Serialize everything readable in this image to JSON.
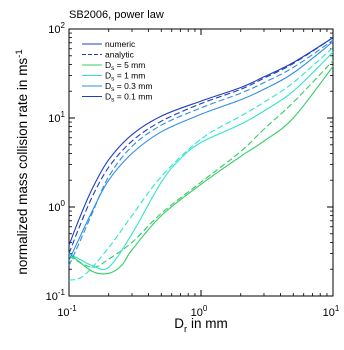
{
  "chart_data": {
    "type": "line",
    "title": "SB2006, power law",
    "xlabel": {
      "main": "D",
      "sub": "r",
      "rest": " in mm"
    },
    "ylabel": {
      "main": "normalized mass collision rate in ms",
      "sup": "-1"
    },
    "xscale": "log",
    "yscale": "log",
    "xlim": [
      0.1,
      10
    ],
    "ylim": [
      0.1,
      100
    ],
    "x_ticks": [
      {
        "base": "10",
        "exp": "-1",
        "value": 0.1
      },
      {
        "base": "10",
        "exp": "0",
        "value": 1
      },
      {
        "base": "10",
        "exp": "1",
        "value": 10
      }
    ],
    "y_ticks": [
      {
        "base": "10",
        "exp": "-1",
        "value": 0.1
      },
      {
        "base": "10",
        "exp": "0",
        "value": 1
      },
      {
        "base": "10",
        "exp": "1",
        "value": 10
      },
      {
        "base": "10",
        "exp": "2",
        "value": 100
      }
    ],
    "legend_position": "top-left",
    "legend": [
      {
        "label": "numeric",
        "sub": "",
        "rest": "",
        "color": "#1f3fbf",
        "dash": false
      },
      {
        "label": "analytic",
        "sub": "",
        "rest": "",
        "color": "#1f3fbf",
        "dash": true
      },
      {
        "label": "D",
        "sub": "s",
        "rest": " = 5 mm",
        "color": "#33cc66",
        "dash": false
      },
      {
        "label": "D",
        "sub": "s",
        "rest": " = 1 mm",
        "color": "#2ee6cc",
        "dash": false
      },
      {
        "label": "D",
        "sub": "s",
        "rest": " = 0.3 mm",
        "color": "#2e8fe6",
        "dash": false
      },
      {
        "label": "D",
        "sub": "s",
        "rest": " = 0.1 mm",
        "color": "#1f3fbf",
        "dash": false
      }
    ],
    "series": [
      {
        "name": "D_s = 5 mm, numeric",
        "color": "#33cc66",
        "dash": false,
        "x": [
          0.1,
          0.15,
          0.2,
          0.25,
          0.3,
          0.5,
          1,
          2,
          3,
          5,
          10
        ],
        "y": [
          0.3,
          0.19,
          0.18,
          0.22,
          0.33,
          0.8,
          1.8,
          3.7,
          5.5,
          10,
          38
        ]
      },
      {
        "name": "D_s = 5 mm, analytic",
        "color": "#33cc66",
        "dash": true,
        "x": [
          0.1,
          0.15,
          0.2,
          0.3,
          0.5,
          1,
          2,
          3,
          5,
          10
        ],
        "y": [
          0.28,
          0.21,
          0.26,
          0.4,
          0.85,
          1.9,
          4.2,
          7.5,
          15,
          44
        ]
      },
      {
        "name": "D_s = 1 mm, numeric",
        "color": "#2ee6cc",
        "dash": false,
        "x": [
          0.1,
          0.12,
          0.15,
          0.2,
          0.3,
          0.5,
          0.7,
          1,
          2,
          3,
          5,
          10
        ],
        "y": [
          0.3,
          0.26,
          0.22,
          0.21,
          0.5,
          1.9,
          3.5,
          5.3,
          8.5,
          12,
          20,
          55
        ]
      },
      {
        "name": "D_s = 1 mm, analytic",
        "color": "#2ee6cc",
        "dash": true,
        "x": [
          0.1,
          0.13,
          0.2,
          0.3,
          0.5,
          1,
          2,
          3,
          5,
          10
        ],
        "y": [
          0.15,
          0.17,
          0.35,
          0.8,
          2.2,
          5.8,
          10.5,
          15,
          25,
          62
        ]
      },
      {
        "name": "D_s = 0.3 mm, numeric",
        "color": "#2e8fe6",
        "dash": false,
        "x": [
          0.1,
          0.12,
          0.15,
          0.2,
          0.3,
          0.5,
          1,
          2,
          3,
          5,
          10
        ],
        "y": [
          0.25,
          0.45,
          0.9,
          2.0,
          4.0,
          7.0,
          11,
          16,
          21,
          32,
          72
        ]
      },
      {
        "name": "D_s = 0.3 mm, analytic",
        "color": "#2e8fe6",
        "dash": true,
        "x": [
          0.1,
          0.12,
          0.15,
          0.2,
          0.3,
          0.5,
          1,
          2,
          3,
          5,
          10
        ],
        "y": [
          0.22,
          0.4,
          0.85,
          2.2,
          4.8,
          8.3,
          13,
          19,
          25,
          37,
          75
        ]
      },
      {
        "name": "D_s = 0.1 mm, numeric",
        "color": "#1f3fbf",
        "dash": false,
        "x": [
          0.1,
          0.12,
          0.15,
          0.2,
          0.3,
          0.5,
          1,
          2,
          3,
          5,
          10
        ],
        "y": [
          0.37,
          0.75,
          1.6,
          3.4,
          6.5,
          10.5,
          15.5,
          22,
          29,
          42,
          80
        ]
      },
      {
        "name": "D_s = 0.1 mm, analytic",
        "color": "#1f3fbf",
        "dash": true,
        "x": [
          0.1,
          0.12,
          0.15,
          0.2,
          0.3,
          0.5,
          1,
          2,
          3,
          5,
          10
        ],
        "y": [
          0.3,
          0.6,
          1.3,
          2.8,
          5.5,
          9.2,
          14.5,
          21,
          28,
          41,
          80
        ]
      }
    ]
  }
}
